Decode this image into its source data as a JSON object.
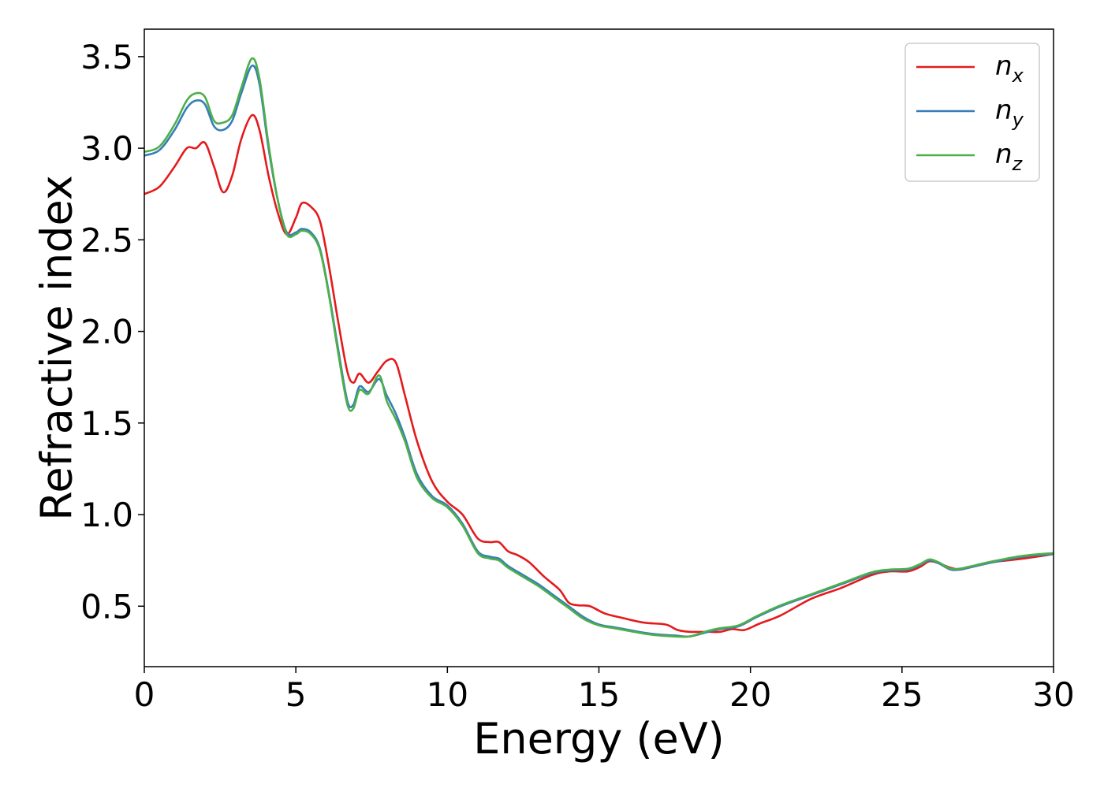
{
  "chart_data": {
    "type": "line",
    "title": "",
    "xlabel": "Energy (eV)",
    "ylabel": "Refractive index",
    "xlim": [
      0,
      30
    ],
    "ylim": [
      0.17,
      3.65
    ],
    "xticks": [
      0,
      5,
      10,
      15,
      20,
      25,
      30
    ],
    "xtick_labels": [
      "0",
      "5",
      "10",
      "15",
      "20",
      "25",
      "30"
    ],
    "yticks": [
      0.5,
      1.0,
      1.5,
      2.0,
      2.5,
      3.0,
      3.5
    ],
    "ytick_labels": [
      "0.5",
      "1.0",
      "1.5",
      "2.0",
      "2.5",
      "3.0",
      "3.5"
    ],
    "grid": false,
    "legend_position": "top-right",
    "series": [
      {
        "name": "n",
        "sub": "x",
        "color": "#e41a1c",
        "x": [
          0,
          0.5,
          1.0,
          1.4,
          1.7,
          2.0,
          2.3,
          2.6,
          2.9,
          3.2,
          3.55,
          3.8,
          4.1,
          4.4,
          4.7,
          5.0,
          5.2,
          5.5,
          5.8,
          6.1,
          6.4,
          6.7,
          6.9,
          7.1,
          7.4,
          7.7,
          8.0,
          8.3,
          8.6,
          9.0,
          9.5,
          10.0,
          10.5,
          11.0,
          11.4,
          11.7,
          12.0,
          12.3,
          12.7,
          13.2,
          13.7,
          14.0,
          14.3,
          14.7,
          15.2,
          15.8,
          16.5,
          17.2,
          17.6,
          18.0,
          18.6,
          19.0,
          19.4,
          19.8,
          20.3,
          21.0,
          22.0,
          23.0,
          24.0,
          24.6,
          25.2,
          25.6,
          25.9,
          26.2,
          26.6,
          26.9,
          27.2,
          28.0,
          29.0,
          30.0
        ],
        "y": [
          2.75,
          2.79,
          2.9,
          3.0,
          3.0,
          3.03,
          2.9,
          2.76,
          2.85,
          3.05,
          3.18,
          3.1,
          2.85,
          2.65,
          2.53,
          2.62,
          2.7,
          2.68,
          2.6,
          2.35,
          2.05,
          1.78,
          1.72,
          1.77,
          1.72,
          1.78,
          1.84,
          1.83,
          1.65,
          1.4,
          1.18,
          1.07,
          1.0,
          0.87,
          0.85,
          0.85,
          0.8,
          0.78,
          0.74,
          0.66,
          0.59,
          0.52,
          0.505,
          0.5,
          0.46,
          0.435,
          0.41,
          0.4,
          0.37,
          0.36,
          0.36,
          0.36,
          0.375,
          0.37,
          0.405,
          0.45,
          0.54,
          0.6,
          0.67,
          0.69,
          0.69,
          0.715,
          0.745,
          0.735,
          0.71,
          0.7,
          0.71,
          0.74,
          0.76,
          0.785
        ]
      },
      {
        "name": "n",
        "sub": "y",
        "color": "#377eb8",
        "x": [
          0,
          0.5,
          1.0,
          1.4,
          1.7,
          2.0,
          2.3,
          2.6,
          2.9,
          3.2,
          3.55,
          3.8,
          4.1,
          4.4,
          4.7,
          5.0,
          5.2,
          5.5,
          5.8,
          6.1,
          6.4,
          6.7,
          6.9,
          7.1,
          7.4,
          7.75,
          8.0,
          8.3,
          8.6,
          9.0,
          9.5,
          10.0,
          10.5,
          11.0,
          11.4,
          11.7,
          12.0,
          12.5,
          13.0,
          13.5,
          14.0,
          14.5,
          15.0,
          15.5,
          16.0,
          16.5,
          17.0,
          17.5,
          18.0,
          18.6,
          19.0,
          19.6,
          20.2,
          21.0,
          22.0,
          23.0,
          24.0,
          24.6,
          25.2,
          25.6,
          25.9,
          26.2,
          26.6,
          26.9,
          27.2,
          28.0,
          29.0,
          30.0
        ],
        "y": [
          2.96,
          2.99,
          3.1,
          3.22,
          3.26,
          3.24,
          3.12,
          3.1,
          3.15,
          3.3,
          3.45,
          3.35,
          3.0,
          2.72,
          2.54,
          2.54,
          2.56,
          2.54,
          2.45,
          2.2,
          1.9,
          1.62,
          1.6,
          1.7,
          1.67,
          1.74,
          1.65,
          1.55,
          1.42,
          1.22,
          1.1,
          1.05,
          0.95,
          0.8,
          0.77,
          0.76,
          0.72,
          0.67,
          0.62,
          0.56,
          0.5,
          0.44,
          0.4,
          0.385,
          0.37,
          0.355,
          0.345,
          0.34,
          0.335,
          0.36,
          0.375,
          0.39,
          0.44,
          0.5,
          0.56,
          0.62,
          0.68,
          0.695,
          0.7,
          0.725,
          0.75,
          0.735,
          0.7,
          0.7,
          0.71,
          0.74,
          0.77,
          0.785
        ]
      },
      {
        "name": "n",
        "sub": "z",
        "color": "#4daf4a",
        "x": [
          0,
          0.5,
          1.0,
          1.4,
          1.7,
          2.0,
          2.3,
          2.6,
          2.9,
          3.2,
          3.55,
          3.8,
          4.1,
          4.4,
          4.7,
          5.0,
          5.2,
          5.5,
          5.8,
          6.1,
          6.4,
          6.7,
          6.9,
          7.1,
          7.4,
          7.75,
          8.0,
          8.3,
          8.6,
          9.0,
          9.5,
          10.0,
          10.5,
          11.0,
          11.4,
          11.7,
          12.0,
          12.5,
          13.0,
          13.5,
          14.0,
          14.5,
          15.0,
          15.5,
          16.0,
          16.5,
          17.0,
          17.5,
          18.0,
          18.6,
          19.0,
          19.6,
          20.2,
          21.0,
          22.0,
          23.0,
          24.0,
          24.6,
          25.2,
          25.6,
          25.9,
          26.2,
          26.6,
          26.9,
          27.2,
          28.0,
          29.0,
          30.0
        ],
        "y": [
          2.98,
          3.01,
          3.13,
          3.26,
          3.3,
          3.28,
          3.15,
          3.14,
          3.18,
          3.33,
          3.49,
          3.38,
          3.02,
          2.72,
          2.53,
          2.53,
          2.55,
          2.53,
          2.44,
          2.19,
          1.88,
          1.6,
          1.58,
          1.68,
          1.66,
          1.76,
          1.62,
          1.52,
          1.4,
          1.2,
          1.09,
          1.04,
          0.94,
          0.79,
          0.76,
          0.75,
          0.71,
          0.66,
          0.61,
          0.55,
          0.49,
          0.43,
          0.395,
          0.38,
          0.365,
          0.35,
          0.34,
          0.335,
          0.335,
          0.365,
          0.38,
          0.395,
          0.445,
          0.505,
          0.565,
          0.625,
          0.685,
          0.7,
          0.705,
          0.73,
          0.755,
          0.74,
          0.705,
          0.705,
          0.715,
          0.745,
          0.775,
          0.79
        ]
      }
    ]
  }
}
